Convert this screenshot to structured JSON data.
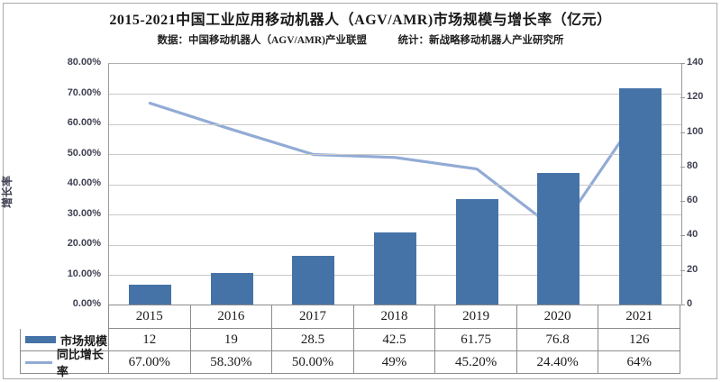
{
  "header": {
    "title": "2015-2021中国工业应用移动机器人（AGV/AMR)市场规模与增长率（亿元）",
    "subtitle": "数据：中国移动机器人（AGV/AMR)产业联盟　　　统计：新战略移动机器人产业研究所"
  },
  "colors": {
    "bar": "#4573a7",
    "line": "#92abd5",
    "grid": "#c9c9c9",
    "axis": "#9a9a9a",
    "table_border": "#8c8c8c",
    "tick_text": "#3f4152"
  },
  "chart_data": {
    "type": "combo-bar-line",
    "title": "2015-2021中国工业应用移动机器人（AGV/AMR)市场规模与增长率（亿元）",
    "categories": [
      "2015",
      "2016",
      "2017",
      "2018",
      "2019",
      "2020",
      "2021"
    ],
    "series": [
      {
        "name": "市场规模",
        "type": "bar",
        "axis": "right",
        "values": [
          12,
          19,
          28.5,
          42.5,
          61.75,
          76.8,
          126
        ],
        "labels": [
          "12",
          "19",
          "28.5",
          "42.5",
          "61.75",
          "76.8",
          "126"
        ]
      },
      {
        "name": "同比增长率",
        "type": "line",
        "axis": "left",
        "values": [
          67.0,
          58.3,
          50.0,
          49.0,
          45.2,
          24.4,
          64.0
        ],
        "labels": [
          "67.00%",
          "58.30%",
          "50.00%",
          "49%",
          "45.20%",
          "24.40%",
          "64%"
        ]
      }
    ],
    "left_axis": {
      "title": "增长率",
      "min": 0,
      "max": 80,
      "tick_step": 10,
      "tick_labels": [
        "80.00%",
        "70.00%",
        "60.00%",
        "50.00%",
        "40.00%",
        "30.00%",
        "20.00%",
        "10.00%",
        "0.00%"
      ]
    },
    "right_axis": {
      "min": 0,
      "max": 140,
      "tick_step": 20,
      "tick_labels": [
        "140",
        "120",
        "100",
        "80",
        "60",
        "40",
        "20",
        "0"
      ]
    },
    "grid": true,
    "legend_position": "table-left"
  }
}
